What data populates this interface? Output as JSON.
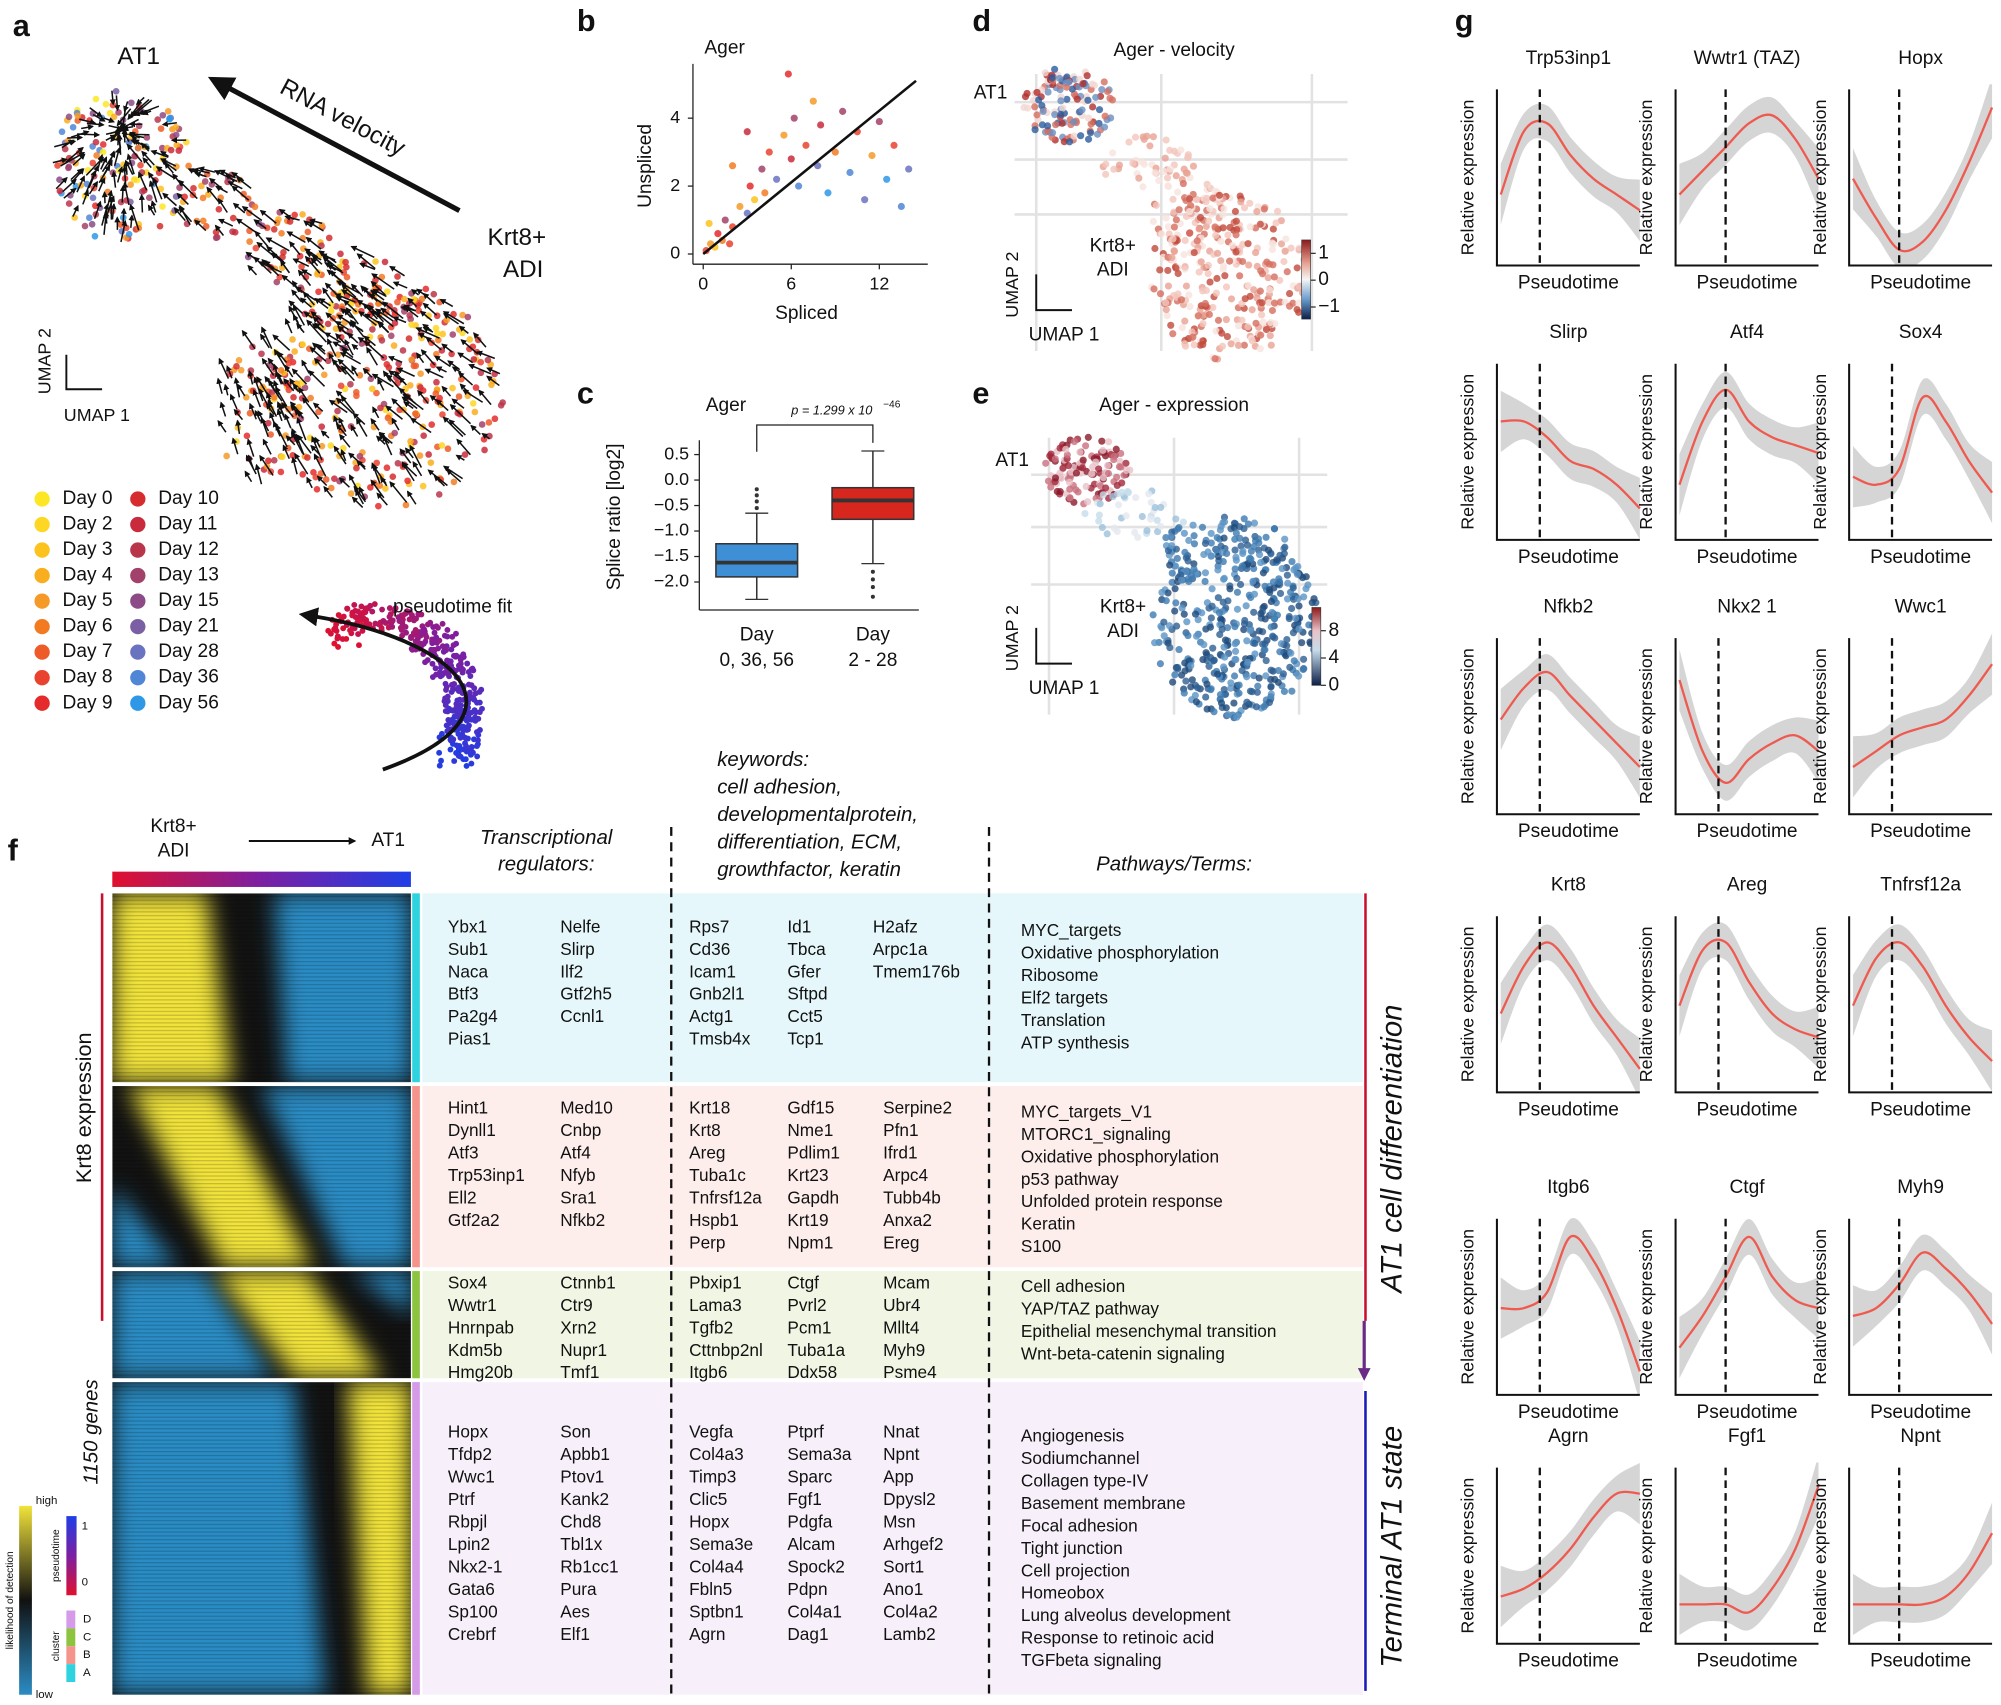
{
  "panel_labels": [
    "a",
    "b",
    "c",
    "d",
    "e",
    "f",
    "g"
  ],
  "a": {
    "at1": "AT1",
    "velocity": "RNA velocity",
    "adi": [
      "Krt8+",
      "ADI"
    ],
    "umap2": "UMAP 2",
    "umap1": "UMAP 1",
    "pseudotime_fit": "pseudotime fit",
    "days": [
      {
        "label": "Day 0",
        "color": "#fde724"
      },
      {
        "label": "Day 2",
        "color": "#fdd723"
      },
      {
        "label": "Day 3",
        "color": "#fcc21e"
      },
      {
        "label": "Day 4",
        "color": "#f9ae20"
      },
      {
        "label": "Day 5",
        "color": "#f69a27"
      },
      {
        "label": "Day 6",
        "color": "#f27b22"
      },
      {
        "label": "Day 7",
        "color": "#ee5a28"
      },
      {
        "label": "Day 8",
        "color": "#e94330"
      },
      {
        "label": "Day 9",
        "color": "#e52a2c"
      },
      {
        "label": "Day 10",
        "color": "#d52d2d"
      },
      {
        "label": "Day 11",
        "color": "#c92a3c"
      },
      {
        "label": "Day 12",
        "color": "#b8354a"
      },
      {
        "label": "Day 13",
        "color": "#a2416a"
      },
      {
        "label": "Day 15",
        "color": "#8c4b86"
      },
      {
        "label": "Day 21",
        "color": "#7a5fa5"
      },
      {
        "label": "Day 28",
        "color": "#6a73c0"
      },
      {
        "label": "Day 36",
        "color": "#4f86d6"
      },
      {
        "label": "Day 56",
        "color": "#2f98e6"
      }
    ]
  },
  "b": {
    "type": "scatter",
    "title": "Ager",
    "xlabel": "Spliced",
    "ylabel": "Unspliced",
    "xlim": [
      -0.7,
      15.3
    ],
    "ylim": [
      -0.3,
      5.6
    ],
    "xticks": [
      0,
      6,
      12
    ],
    "yticks": [
      0,
      2,
      4
    ],
    "x": [
      0.2,
      0.5,
      0.8,
      1,
      1.3,
      1.5,
      2,
      2.5,
      3,
      3.2,
      3.5,
      4,
      4.2,
      4.5,
      5,
      5.5,
      6,
      6.2,
      6.5,
      7,
      7.5,
      7.8,
      8,
      8.5,
      9,
      9.5,
      10,
      10.5,
      11,
      11.5,
      12,
      12.5,
      13,
      13.5,
      14,
      5.8,
      3,
      2,
      0.4,
      1.8
    ],
    "y": [
      0.1,
      0.3,
      0.2,
      0.6,
      0.4,
      1,
      0.8,
      1.4,
      1.2,
      2,
      1.6,
      2.5,
      1.8,
      3,
      2.2,
      3.5,
      2.8,
      4,
      2,
      3.2,
      4.5,
      2.6,
      3.8,
      1.8,
      3,
      4.2,
      2.4,
      3.6,
      1.6,
      2.9,
      3.9,
      2.2,
      3.2,
      1.4,
      2.5,
      5.3,
      3.6,
      2.6,
      0.9,
      0.3
    ],
    "colors": [
      "#e94330",
      "#f69a27",
      "#fcc21e",
      "#e52a2c",
      "#f27b22",
      "#a2416a",
      "#e94330",
      "#f69a27",
      "#6a73c0",
      "#e52a2c",
      "#fcc21e",
      "#a2416a",
      "#f27b22",
      "#e94330",
      "#6a73c0",
      "#f69a27",
      "#c92a3c",
      "#a2416a",
      "#4f86d6",
      "#e94330",
      "#f69a27",
      "#6a73c0",
      "#c92a3c",
      "#2f98e6",
      "#f27b22",
      "#a2416a",
      "#4f86d6",
      "#e94330",
      "#6a73c0",
      "#f69a27",
      "#a2416a",
      "#2f98e6",
      "#e94330",
      "#4f86d6",
      "#6a73c0",
      "#e52a2c",
      "#c92a3c",
      "#f27b22",
      "#fcc21e",
      "#e94330"
    ],
    "fit": {
      "x": [
        0,
        14.5
      ],
      "y": [
        0,
        5.1
      ]
    }
  },
  "c": {
    "type": "box",
    "title": "Ager",
    "ylabel": "Splice ratio [log2]",
    "ylim": [
      -2.55,
      0.78
    ],
    "yticks": [
      0.5,
      {
        "value": 0,
        "label": "0.0"
      },
      {
        "value": -0.5,
        "label": "−0.5"
      },
      {
        "value": -1,
        "label": "−1.0"
      },
      {
        "value": -1.5,
        "label": "−1.5"
      },
      {
        "value": -2,
        "label": "−2.0"
      }
    ],
    "groups": [
      {
        "label": [
          "Day",
          "0, 36, 56"
        ],
        "color": "#3f8fd6",
        "whisker_low": -2.34,
        "q1": -1.9,
        "median": -1.62,
        "q3": -1.25,
        "whisker_high": -0.65,
        "outliers": [
          -0.55,
          -0.42,
          -0.3,
          -0.18
        ]
      },
      {
        "label": [
          "Day",
          "2 - 28"
        ],
        "color": "#d7261e",
        "whisker_low": -1.64,
        "q1": -0.77,
        "median": -0.4,
        "q3": -0.15,
        "whisker_high": 0.57,
        "outliers": [
          -1.8,
          -1.95,
          -2.1,
          -2.29
        ]
      }
    ],
    "p_value": {
      "text": "p = 1.299 x 10",
      "exponent": "−46"
    }
  },
  "d": {
    "title": "Ager - velocity",
    "at1": "AT1",
    "adi": [
      "Krt8+",
      "ADI"
    ],
    "umap2": "UMAP 2",
    "umap1": "UMAP 1",
    "colorbar": {
      "lim": [
        -1.45,
        1.5
      ],
      "ticks": [
        1,
        0,
        {
          "value": -1,
          "label": "−1"
        }
      ]
    }
  },
  "e": {
    "title": "Ager - expression",
    "at1": "AT1",
    "adi": [
      "Krt8+",
      "ADI"
    ],
    "umap2": "UMAP 2",
    "umap1": "UMAP 1",
    "colorbar": {
      "lim": [
        0,
        11.4
      ],
      "ticks": [
        8,
        4,
        0
      ]
    }
  },
  "f": {
    "start": [
      "Krt8+",
      "ADI"
    ],
    "end": "AT1",
    "headers": {
      "regulators": [
        "Transcriptional",
        "regulators:"
      ],
      "keywords": [
        "keywords:",
        "cell adhesion,",
        "developmentalprotein,",
        "differentiation, ECM,",
        "growthfactor, keratin"
      ],
      "pathways": "Pathways/Terms:"
    },
    "side": {
      "krt8": "Krt8 expression",
      "genes": "1150 genes",
      "differentiation": "AT1 cell differentiation",
      "terminal": "Terminal AT1 state"
    },
    "legend": {
      "high": "high",
      "low": "low",
      "detection": "likelihood of detection",
      "pseudotime": "pseudotime",
      "pt_high": "1",
      "pt_low": "0",
      "cluster": "cluster",
      "clusters": [
        "D",
        "C",
        "B",
        "A"
      ]
    },
    "clusters": [
      {
        "regulators": [
          [
            "Ybx1",
            "Sub1",
            "Naca",
            "Btf3",
            "Pa2g4",
            "Pias1"
          ],
          [
            "Nelfe",
            "Slirp",
            "Ilf2",
            "Gtf2h5",
            "Ccnl1"
          ]
        ],
        "keywords": [
          [
            "Rps7",
            "Cd36",
            "Icam1",
            "Gnb2l1",
            "Actg1",
            "Tmsb4x"
          ],
          [
            "Id1",
            "Tbca",
            "Gfer",
            "Sftpd",
            "Cct5",
            "Tcp1"
          ],
          [
            "H2afz",
            "Arpc1a",
            "Tmem176b"
          ]
        ],
        "pathways": [
          "MYC_targets",
          "Oxidative phosphorylation",
          "Ribosome",
          "Elf2 targets",
          "Translation",
          "ATP synthesis"
        ]
      },
      {
        "regulators": [
          [
            "Hint1",
            "Dynll1",
            "Atf3",
            "Trp53inp1",
            "Ell2",
            "Gtf2a2"
          ],
          [
            "Med10",
            "Cnbp",
            "Atf4",
            "Nfyb",
            "Sra1",
            "Nfkb2"
          ]
        ],
        "keywords": [
          [
            "Krt18",
            "Krt8",
            "Areg",
            "Tuba1c",
            "Tnfrsf12a",
            "Hspb1",
            "Perp"
          ],
          [
            "Gdf15",
            "Nme1",
            "Pdlim1",
            "Krt23",
            "Gapdh",
            "Krt19",
            "Npm1"
          ],
          [
            "Serpine2",
            "Pfn1",
            "Ifrd1",
            "Arpc4",
            "Tubb4b",
            "Anxa2",
            "Ereg"
          ]
        ],
        "pathways": [
          "MYC_targets_V1",
          "MTORC1_signaling",
          "Oxidative phosphorylation",
          "p53 pathway",
          "Unfolded protein response",
          "Keratin",
          "S100"
        ]
      },
      {
        "regulators": [
          [
            "Sox4",
            "Wwtr1",
            "Hnrnpab",
            "Kdm5b",
            "Hmg20b"
          ],
          [
            "Ctnnb1",
            "Ctr9",
            "Xrn2",
            "Nupr1",
            "Tmf1"
          ]
        ],
        "keywords": [
          [
            "Pbxip1",
            "Lama3",
            "Tgfb2",
            "Cttnbp2nl",
            "Itgb6"
          ],
          [
            "Ctgf",
            "Pvrl2",
            "Pcm1",
            "Tuba1a",
            "Ddx58"
          ],
          [
            "Mcam",
            "Ubr4",
            "Mllt4",
            "Myh9",
            "Psme4"
          ]
        ],
        "pathways": [
          "Cell adhesion",
          "YAP/TAZ pathway",
          "Epithelial mesenchymal transition",
          "Wnt-beta-catenin signaling"
        ]
      },
      {
        "regulators": [
          [
            "Hopx",
            "Tfdp2",
            "Wwc1",
            "Ptrf",
            "Rbpjl",
            "Lpin2",
            "Nkx2-1",
            "Gata6",
            "Sp100",
            "Crebrf"
          ],
          [
            "Son",
            "Apbb1",
            "Ptov1",
            "Kank2",
            "Chd8",
            "Tbl1x",
            "Rb1cc1",
            "Pura",
            "Aes",
            "Elf1"
          ]
        ],
        "keywords": [
          [
            "Vegfa",
            "Col4a3",
            "Timp3",
            "Clic5",
            "Hopx",
            "Sema3e",
            "Col4a4",
            "Fbln5",
            "Sptbn1",
            "Agrn"
          ],
          [
            "Ptprf",
            "Sema3a",
            "Sparc",
            "Fgf1",
            "Pdgfa",
            "Alcam",
            "Spock2",
            "Pdpn",
            "Col4a1",
            "Dag1"
          ],
          [
            "Nnat",
            "Npnt",
            "App",
            "Dpysl2",
            "Msn",
            "Arhgef2",
            "Sort1",
            "Ano1",
            "Col4a2",
            "Lamb2"
          ]
        ],
        "pathways": [
          "Angiogenesis",
          "Sodiumchannel",
          "Collagen type-IV",
          "Basement membrane",
          "Focal adhesion",
          "Tight junction",
          "Cell projection",
          "Homeobox",
          "Lung alveolus development",
          "Response to retinoic acid",
          "TGFbeta signaling"
        ]
      }
    ]
  },
  "g": {
    "ylabel": "Relative expression",
    "xlabel": "Pseudotime",
    "plots": [
      {
        "title": "Trp53inp1",
        "trend": [
          0.4,
          0.8,
          0.85,
          0.65,
          0.5,
          0.4,
          0.3
        ],
        "mark": 0.3
      },
      {
        "title": "Wwtr1 (TAZ)",
        "trend": [
          0.4,
          0.55,
          0.7,
          0.85,
          0.9,
          0.75,
          0.5
        ],
        "mark": 0.35
      },
      {
        "title": "Hopx",
        "trend": [
          0.5,
          0.25,
          0.05,
          0.1,
          0.3,
          0.6,
          0.95
        ],
        "mark": 0.35
      },
      {
        "title": "Slirp",
        "trend": [
          0.7,
          0.7,
          0.6,
          0.45,
          0.4,
          0.3,
          0.15
        ],
        "mark": 0.3
      },
      {
        "title": "Atf4",
        "trend": [
          0.3,
          0.7,
          0.9,
          0.7,
          0.6,
          0.55,
          0.5
        ],
        "mark": 0.35
      },
      {
        "title": "Sox4",
        "trend": [
          0.35,
          0.3,
          0.4,
          0.85,
          0.7,
          0.45,
          0.25
        ],
        "mark": 0.3
      },
      {
        "title": "Nfkb2",
        "trend": [
          0.55,
          0.75,
          0.85,
          0.7,
          0.55,
          0.4,
          0.25
        ],
        "mark": 0.3
      },
      {
        "title": "Nkx2  1",
        "trend": [
          0.8,
          0.35,
          0.15,
          0.3,
          0.4,
          0.45,
          0.35
        ],
        "mark": 0.3
      },
      {
        "title": "Wwc1",
        "trend": [
          0.25,
          0.35,
          0.45,
          0.5,
          0.55,
          0.7,
          0.9
        ],
        "mark": 0.3
      },
      {
        "title": "Krt8",
        "trend": [
          0.45,
          0.75,
          0.9,
          0.75,
          0.5,
          0.3,
          0.1
        ],
        "mark": 0.3
      },
      {
        "title": "Areg",
        "trend": [
          0.5,
          0.85,
          0.9,
          0.65,
          0.45,
          0.35,
          0.3
        ],
        "mark": 0.3
      },
      {
        "title": "Tnfrsf12a",
        "trend": [
          0.5,
          0.8,
          0.9,
          0.75,
          0.5,
          0.3,
          0.15
        ],
        "mark": 0.3
      },
      {
        "title": "Itgb6",
        "trend": [
          0.5,
          0.5,
          0.6,
          0.95,
          0.8,
          0.5,
          0.1
        ],
        "mark": 0.3
      },
      {
        "title": "Ctgf",
        "trend": [
          0.25,
          0.45,
          0.7,
          0.95,
          0.7,
          0.55,
          0.5
        ],
        "mark": 0.35
      },
      {
        "title": "Myh9",
        "trend": [
          0.45,
          0.5,
          0.65,
          0.85,
          0.75,
          0.6,
          0.4
        ],
        "mark": 0.35
      },
      {
        "title": "Agrn",
        "trend": [
          0.25,
          0.3,
          0.4,
          0.55,
          0.75,
          0.9,
          0.9
        ],
        "mark": 0.3
      },
      {
        "title": "Fgf1",
        "trend": [
          0.2,
          0.2,
          0.2,
          0.15,
          0.3,
          0.55,
          0.95
        ],
        "mark": 0.35
      },
      {
        "title": "Npnt",
        "trend": [
          0.2,
          0.2,
          0.2,
          0.2,
          0.25,
          0.4,
          0.65
        ],
        "mark": 0.35
      }
    ]
  }
}
